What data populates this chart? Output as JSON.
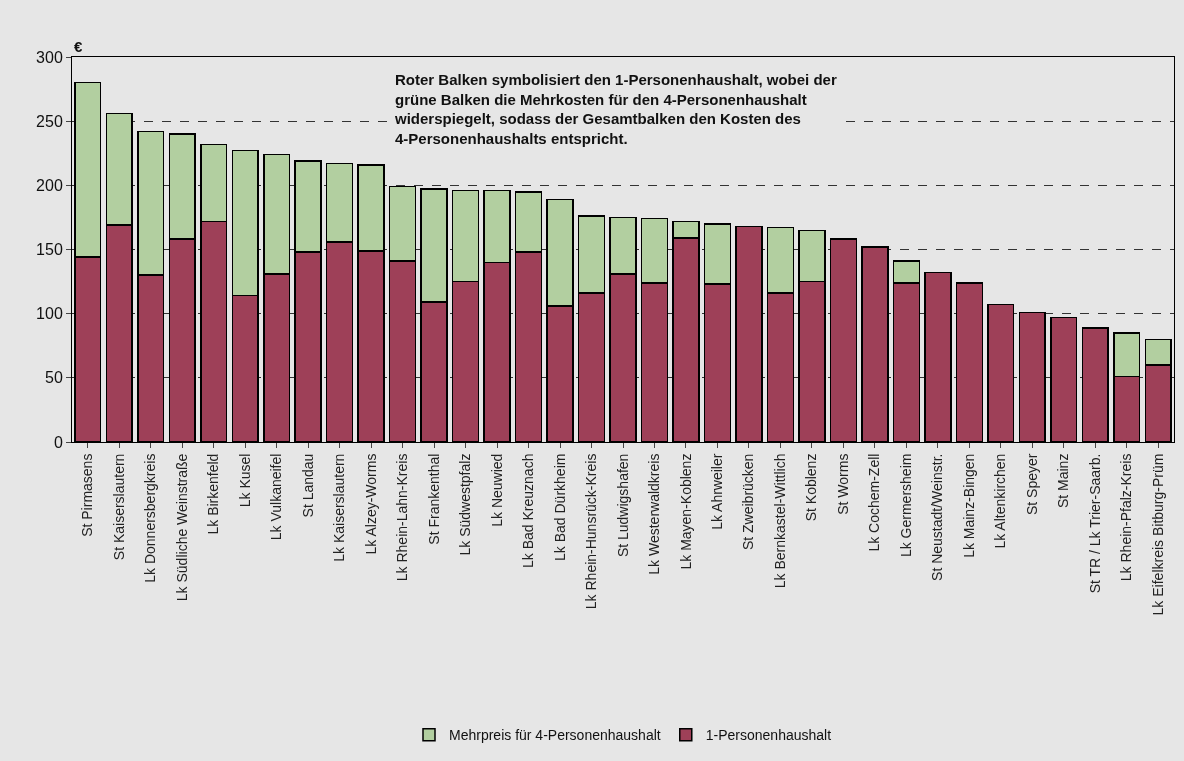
{
  "chart_data": {
    "type": "bar",
    "stacked": true,
    "ylabel": "€",
    "categories": [
      "St Pirmasens",
      "St Kaiserslautern",
      "Lk Donnersbergkreis",
      "Lk Südliche Weinstraße",
      "Lk Birkenfeld",
      "Lk Kusel",
      "Lk Vulkaneifel",
      "St Landau",
      "Lk Kaiserslautern",
      "Lk Alzey-Worms",
      "Lk Rhein-Lahn-Kreis",
      "St Frankenthal",
      "Lk Südwestpfalz",
      "Lk Neuwied",
      "Lk Bad Kreuznach",
      "Lk Bad Dürkheim",
      "Lk Rhein-Hunsrück-Kreis",
      "St Ludwigshafen",
      "Lk Westerwaldkreis",
      "Lk Mayen-Koblenz",
      "Lk Ahrweiler",
      "St Zweibrücken",
      "Lk Bernkastel-Wittlich",
      "St Koblenz",
      "St Worms",
      "Lk Cochem-Zell",
      "Lk Germersheim",
      "St Neustadt/Weinstr.",
      "Lk Mainz-Bingen",
      "Lk Altenkirchen",
      "St Speyer",
      "St Mainz",
      "St TR / Lk Trier-Saarb.",
      "Lk Rhein-Pfalz-Kreis",
      "Lk Eifelkreis Bitburg-Prüm"
    ],
    "series": [
      {
        "name": "1-Personenhaushalt",
        "color": "#9e4058",
        "values": [
          144,
          169,
          130,
          158,
          172,
          114,
          131,
          148,
          156,
          149,
          141,
          109,
          125,
          140,
          148,
          106,
          116,
          131,
          124,
          159,
          123,
          168,
          116,
          125,
          158,
          152,
          124,
          132,
          124,
          107,
          101,
          97,
          89,
          51,
          60
        ]
      },
      {
        "name": "Mehrpreis für 4-Personenhaushalt",
        "color": "#b2cfa0",
        "values": [
          136,
          87,
          112,
          82,
          60,
          113,
          93,
          71,
          61,
          67,
          58,
          88,
          71,
          56,
          47,
          83,
          60,
          44,
          50,
          13,
          47,
          null,
          51,
          40,
          null,
          null,
          17,
          null,
          null,
          null,
          null,
          null,
          null,
          34,
          20
        ]
      }
    ],
    "ylim": [
      0,
      300
    ],
    "yticks": [
      0,
      50,
      100,
      150,
      200,
      250,
      300
    ],
    "grid": "y",
    "line_style": "dashed",
    "legend": "bottom",
    "annotations": [
      "Roter Balken symbolisiert den 1-Personenhaushalt, wobei der\ngrüne Balken die Mehrkosten für den 4-Personenhaushalt\nwiderspiegelt, sodass der Gesamtbalken den Kosten des\n4-Personenhaushalts entspricht."
    ]
  }
}
